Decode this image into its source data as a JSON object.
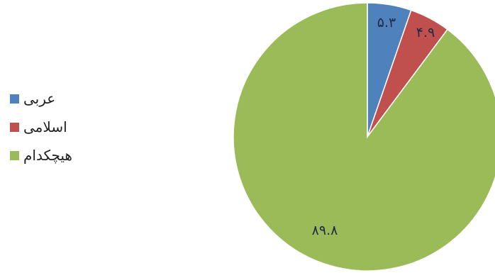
{
  "chart_data": {
    "type": "pie",
    "categories": [
      "عربی",
      "اسلامی",
      "هیچکدام"
    ],
    "values": [
      5.3,
      4.9,
      89.8
    ],
    "value_labels": [
      "۵.۳",
      "۴.۹",
      "۸۹.۸"
    ],
    "colors": [
      "#4f81bd",
      "#c0504d",
      "#9bbb59"
    ],
    "start_angle": "12 o'clock",
    "direction": "clockwise",
    "legend_position": "left"
  }
}
